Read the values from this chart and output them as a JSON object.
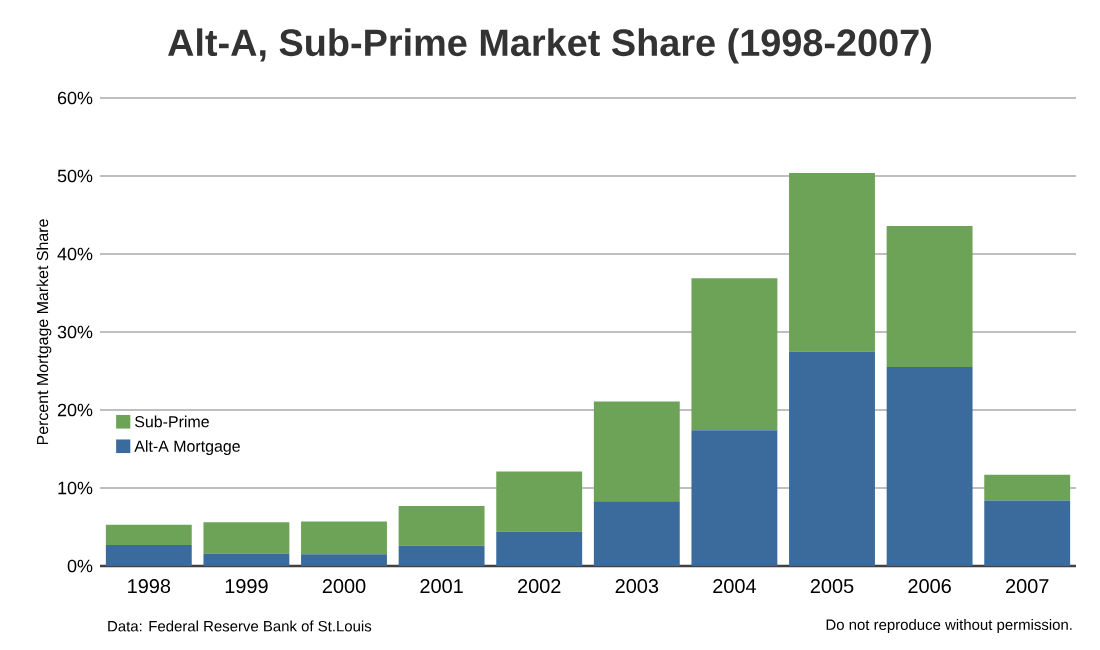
{
  "chart_data": {
    "type": "bar",
    "title": "Alt-A, Sub-Prime Market Share (1998-2007)",
    "ylabel": "Percent Mortgage Market Share",
    "categories": [
      "1998",
      "1999",
      "2000",
      "2001",
      "2002",
      "2003",
      "2004",
      "2005",
      "2006",
      "2007"
    ],
    "stacked": true,
    "series": [
      {
        "name": "Alt-A Mortgage",
        "color": "#3a6b9c",
        "values": [
          2.7,
          1.6,
          1.5,
          2.6,
          4.4,
          8.3,
          17.4,
          27.5,
          25.5,
          8.4
        ]
      },
      {
        "name": "Sub-Prime",
        "color": "#6ca356",
        "values": [
          2.6,
          4.0,
          4.2,
          5.1,
          7.7,
          12.8,
          19.5,
          22.9,
          18.1,
          3.3
        ]
      }
    ],
    "ylim": [
      0,
      60
    ],
    "yticks": [
      {
        "value": 0,
        "label": "0%"
      },
      {
        "value": 10,
        "label": "10%"
      },
      {
        "value": 20,
        "label": "20%"
      },
      {
        "value": 30,
        "label": "30%"
      },
      {
        "value": 40,
        "label": "40%"
      },
      {
        "value": 50,
        "label": "50%"
      },
      {
        "value": 60,
        "label": "60%"
      }
    ],
    "grid": "y",
    "legend": "left",
    "annotations": [
      "Data: Federal Reserve Bank of St.Louis",
      "Do not reproduce without permission."
    ]
  }
}
